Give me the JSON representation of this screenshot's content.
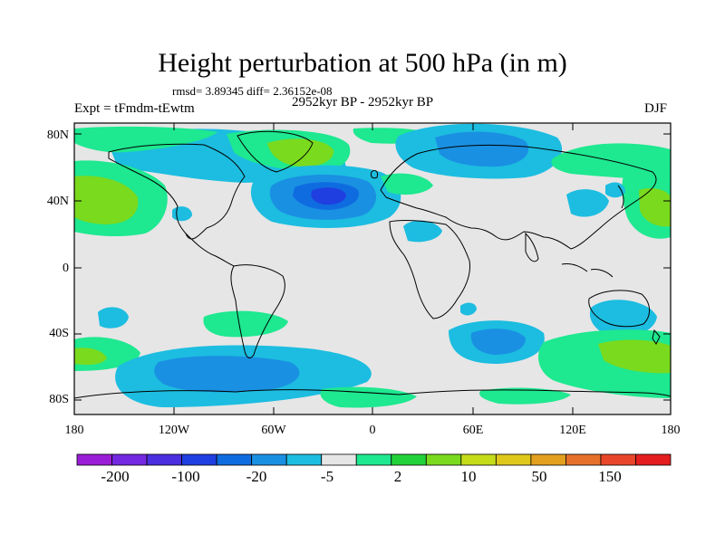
{
  "title": "Height perturbation at 500 hPa (in m)",
  "stats": "rmsd= 3.89345 diff= 2.36152e-08",
  "experiment": "Expt = tFmdm-tEwtm",
  "period": "2952kyr BP - 2952kyr BP",
  "season": "DJF",
  "lat_ticks": [
    "80N",
    "40N",
    "0",
    "40S",
    "80S"
  ],
  "lon_ticks": [
    "180",
    "120W",
    "60W",
    "0",
    "60E",
    "120E",
    "180"
  ],
  "colorbar": {
    "labels": [
      "-200",
      "-100",
      "-20",
      "-5",
      "2",
      "10",
      "50",
      "150"
    ],
    "colors": [
      "#9a1ed6",
      "#7428e0",
      "#4a2ee0",
      "#1f3fe0",
      "#0f6ce0",
      "#1a90e2",
      "#1cbde0",
      "#e6e6e6",
      "#1ee890",
      "#22d23a",
      "#7ada1e",
      "#c4dc1a",
      "#e0c81a",
      "#e2a01e",
      "#e6702a",
      "#e8452a",
      "#e41e1e"
    ]
  },
  "colors": {
    "background": "#e6e6e6",
    "coast": "#000000"
  }
}
